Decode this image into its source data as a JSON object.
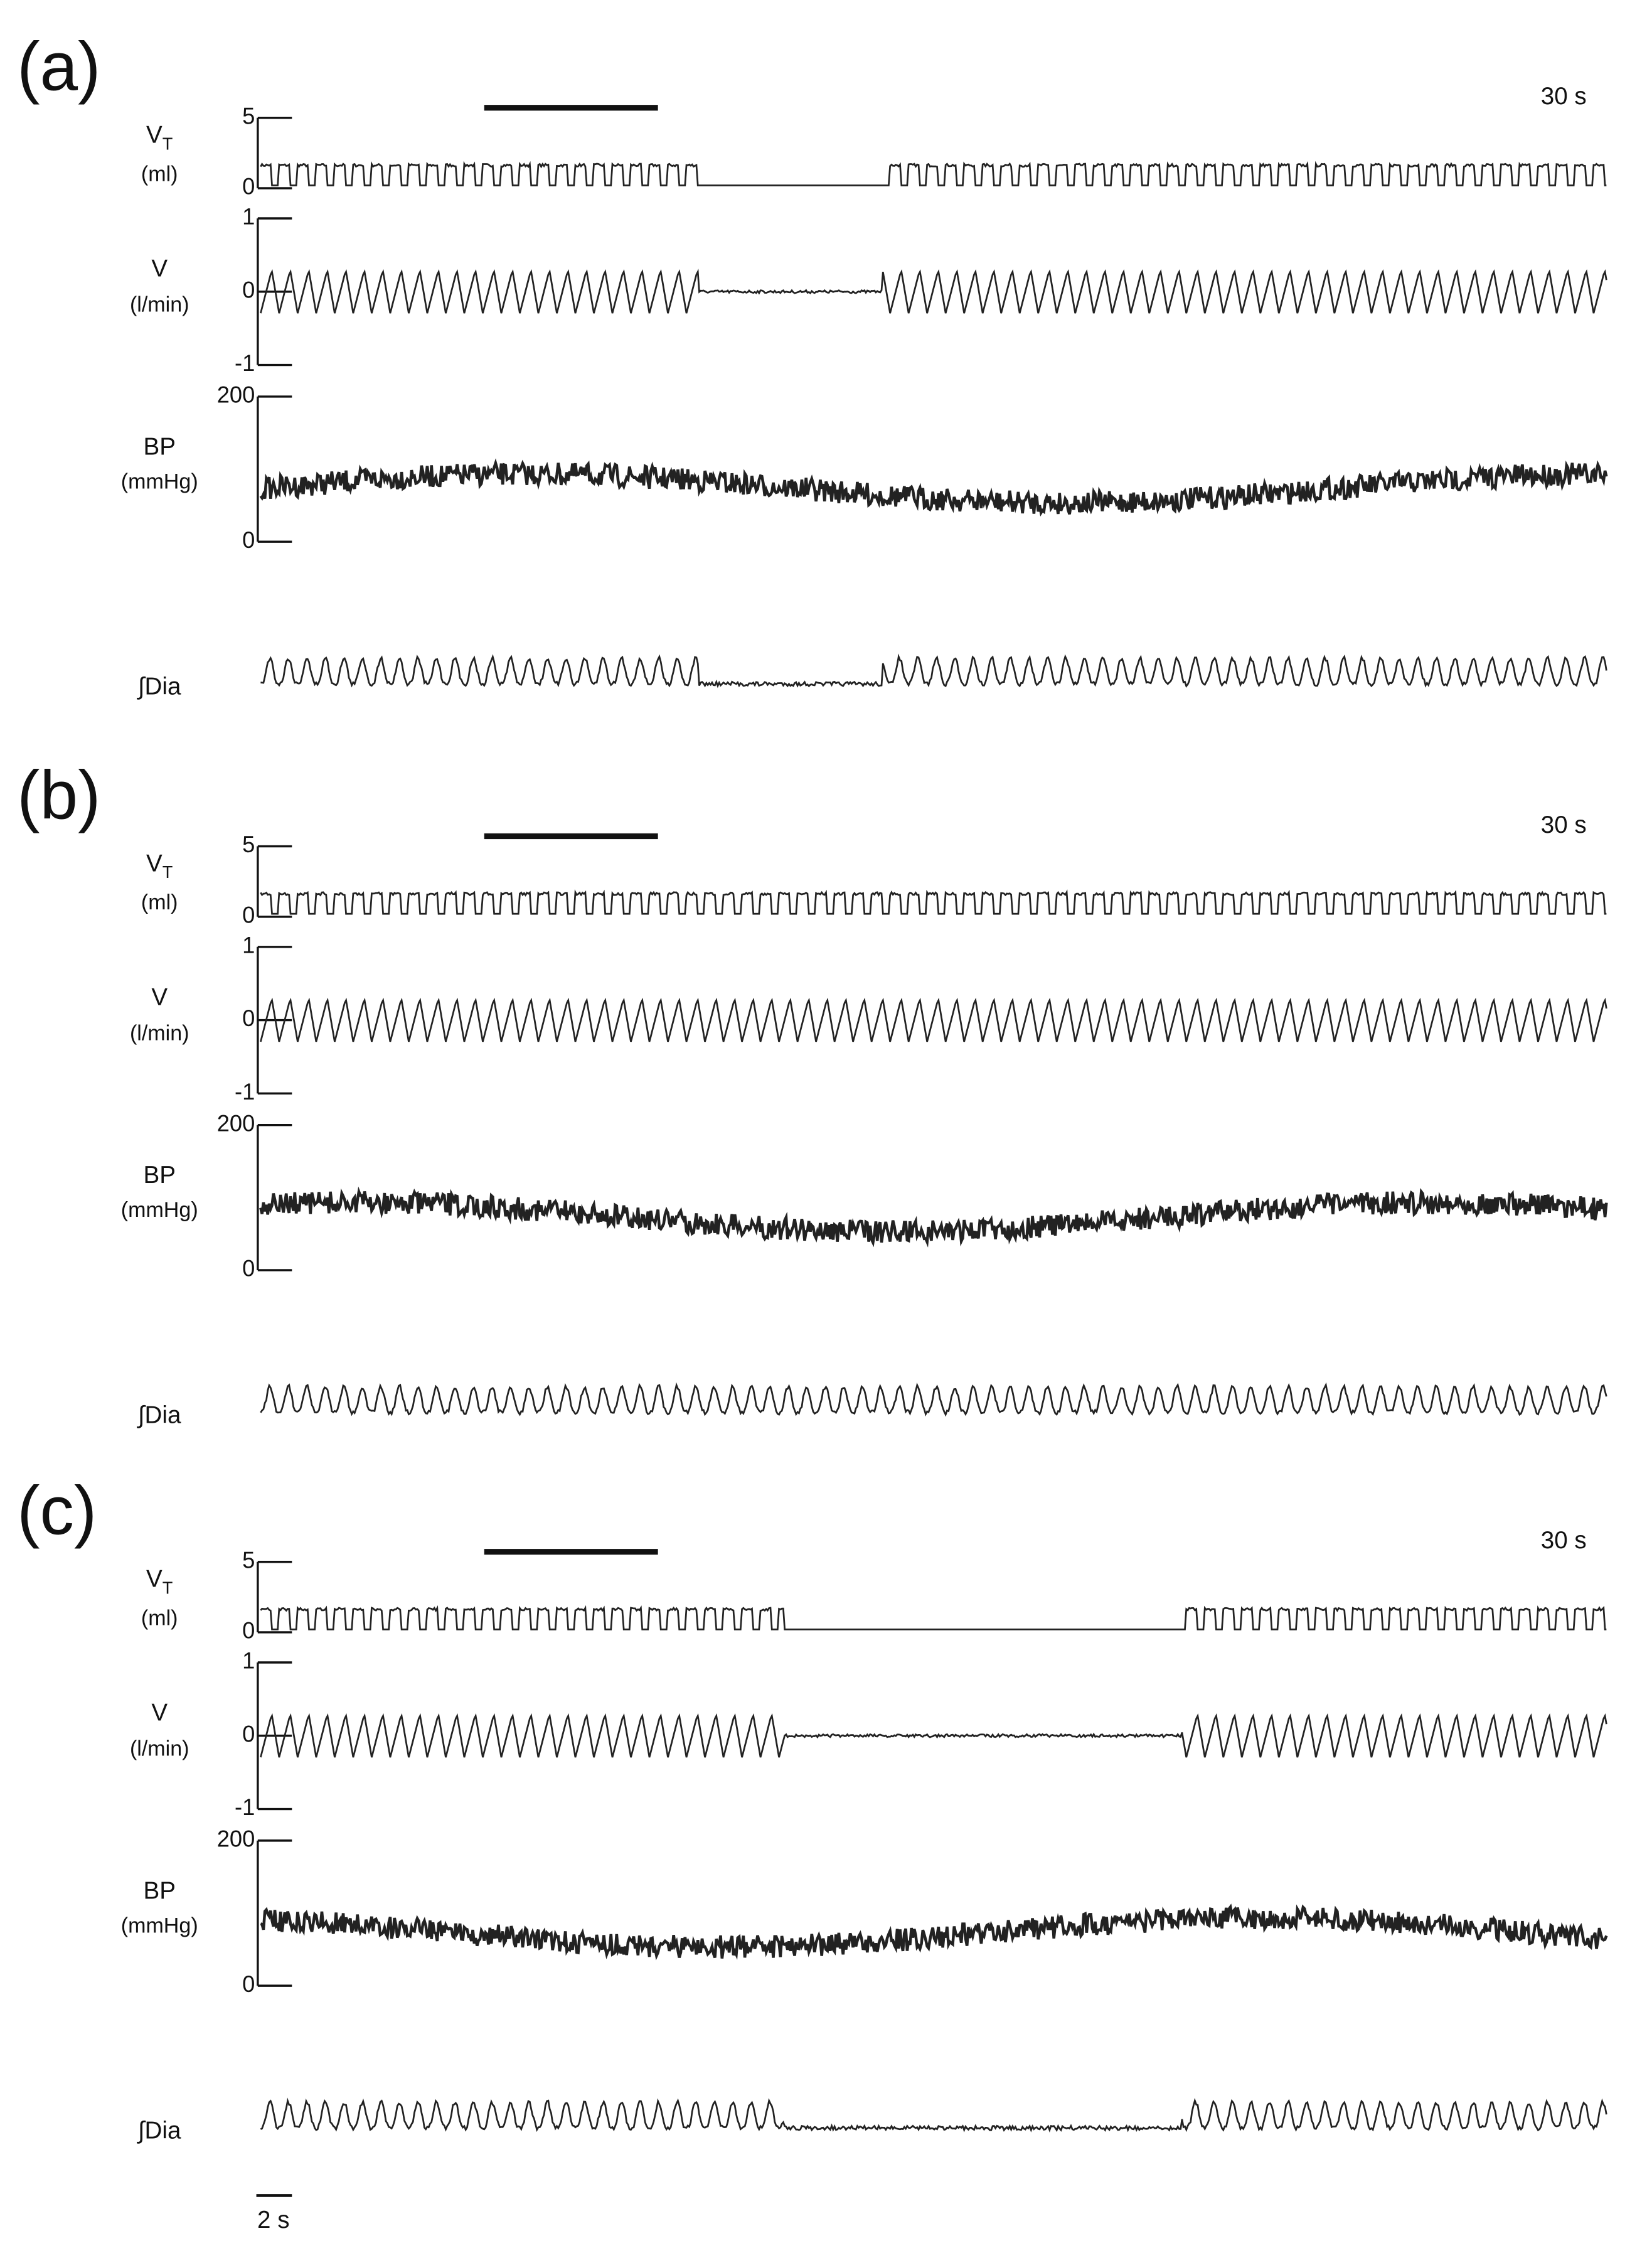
{
  "panels": [
    {
      "label": "(a)",
      "duration": "30 s",
      "channels": [
        {
          "name": "V",
          "subscript": "T",
          "unit": "(ml)",
          "ticks": [
            5,
            0
          ]
        },
        {
          "name": "V",
          "unit": "(l/min)",
          "ticks": [
            1,
            0,
            -1
          ]
        },
        {
          "name": "BP",
          "unit": "(mmHg)",
          "ticks": [
            200,
            0
          ]
        },
        {
          "name": "∫Dia"
        }
      ]
    },
    {
      "label": "(b)",
      "duration": "30 s",
      "channels": [
        {
          "name": "V",
          "subscript": "T",
          "unit": "(ml)",
          "ticks": [
            5,
            0
          ]
        },
        {
          "name": "V",
          "unit": "(l/min)",
          "ticks": [
            1,
            0,
            -1
          ]
        },
        {
          "name": "BP",
          "unit": "(mmHg)",
          "ticks": [
            200,
            0
          ]
        },
        {
          "name": "∫Dia"
        }
      ]
    },
    {
      "label": "(c)",
      "duration": "30 s",
      "channels": [
        {
          "name": "V",
          "subscript": "T",
          "unit": "(ml)",
          "ticks": [
            5,
            0
          ]
        },
        {
          "name": "V",
          "unit": "(l/min)",
          "ticks": [
            1,
            0,
            -1
          ]
        },
        {
          "name": "BP",
          "unit": "(mmHg)",
          "ticks": [
            200,
            0
          ]
        },
        {
          "name": "∫Dia"
        }
      ]
    }
  ],
  "scale_bar": "2 s"
}
